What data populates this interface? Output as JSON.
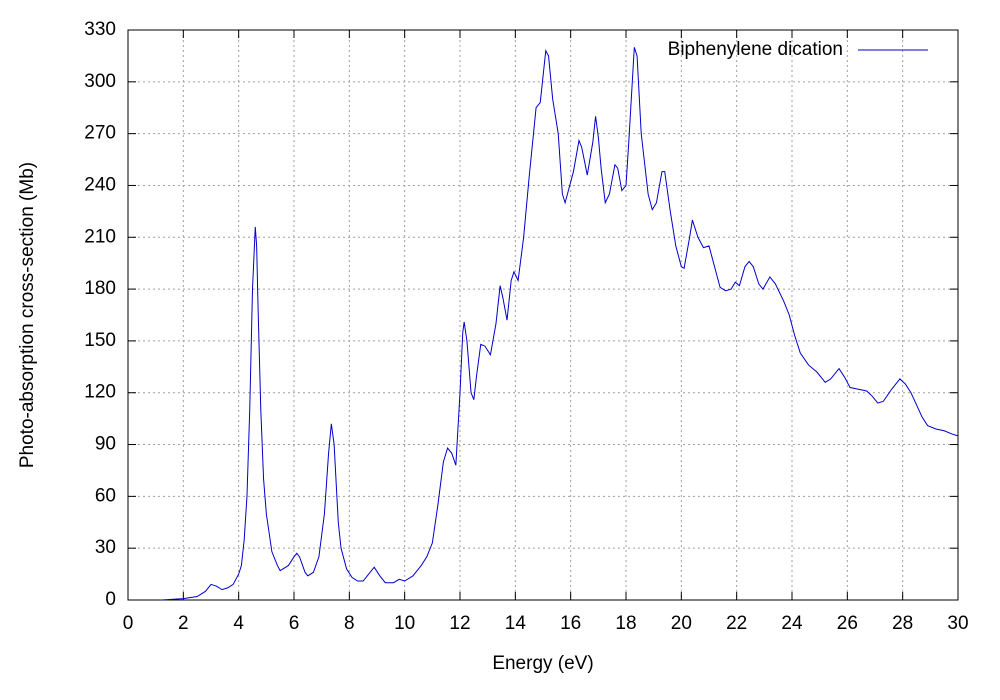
{
  "chart_data": {
    "type": "line",
    "xlabel": "Energy (eV)",
    "ylabel": "Photo-absorption cross-section (Mb)",
    "x": [
      1.2,
      1.5,
      2,
      2.5,
      2.8,
      3.0,
      3.2,
      3.4,
      3.6,
      3.8,
      4.0,
      4.1,
      4.2,
      4.3,
      4.4,
      4.5,
      4.6,
      4.65,
      4.7,
      4.8,
      4.9,
      5.0,
      5.2,
      5.4,
      5.5,
      5.6,
      5.8,
      6.0,
      6.1,
      6.2,
      6.4,
      6.5,
      6.7,
      6.9,
      7.1,
      7.25,
      7.35,
      7.45,
      7.6,
      7.7,
      7.9,
      8.1,
      8.3,
      8.5,
      8.7,
      8.9,
      9.1,
      9.3,
      9.6,
      9.8,
      10.0,
      10.3,
      10.6,
      10.8,
      11.0,
      11.2,
      11.4,
      11.55,
      11.7,
      11.85,
      12.0,
      12.1,
      12.15,
      12.25,
      12.4,
      12.5,
      12.6,
      12.75,
      12.9,
      13.1,
      13.3,
      13.45,
      13.55,
      13.7,
      13.85,
      13.95,
      14.1,
      14.3,
      14.5,
      14.75,
      14.9,
      15.1,
      15.2,
      15.35,
      15.55,
      15.7,
      15.8,
      16.0,
      16.1,
      16.3,
      16.4,
      16.6,
      16.8,
      16.9,
      17.0,
      17.1,
      17.25,
      17.4,
      17.6,
      17.7,
      17.85,
      18.0,
      18.1,
      18.3,
      18.4,
      18.55,
      18.8,
      18.95,
      19.1,
      19.3,
      19.4,
      19.6,
      19.8,
      20.0,
      20.1,
      20.3,
      20.4,
      20.6,
      20.8,
      21.0,
      21.2,
      21.4,
      21.6,
      21.8,
      21.95,
      22.1,
      22.3,
      22.45,
      22.6,
      22.8,
      22.95,
      23.2,
      23.4,
      23.7,
      23.9,
      24.1,
      24.3,
      24.6,
      24.9,
      25.2,
      25.4,
      25.7,
      25.9,
      26.1,
      26.4,
      26.7,
      26.9,
      27.1,
      27.3,
      27.6,
      27.9,
      28.1,
      28.3,
      28.5,
      28.7,
      28.9,
      29.2,
      29.5,
      29.8,
      30
    ],
    "series": [
      {
        "name": "Biphenylene dication",
        "color": "#0000cc",
        "values": [
          0,
          0.3,
          0.8,
          2,
          5,
          9,
          8,
          6,
          7,
          9,
          15,
          20,
          35,
          60,
          110,
          180,
          216,
          205,
          170,
          110,
          70,
          50,
          28,
          20,
          17,
          18,
          20,
          25,
          27,
          25,
          16,
          14,
          16,
          25,
          50,
          85,
          102,
          90,
          45,
          30,
          18,
          13,
          11,
          11,
          15,
          19,
          14,
          10,
          10,
          12,
          11,
          14,
          20,
          25,
          33,
          55,
          80,
          88,
          85,
          78,
          120,
          155,
          161,
          150,
          120,
          116,
          130,
          148,
          147,
          142,
          160,
          182,
          175,
          162,
          185,
          190,
          185,
          210,
          245,
          285,
          288,
          318,
          315,
          290,
          270,
          235,
          230,
          242,
          248,
          266,
          262,
          246,
          265,
          280,
          268,
          250,
          230,
          235,
          252,
          250,
          237,
          240,
          265,
          320,
          315,
          270,
          235,
          226,
          230,
          248,
          248,
          225,
          205,
          193,
          192,
          210,
          220,
          210,
          204,
          205,
          193,
          181,
          179,
          180,
          184,
          182,
          193,
          196,
          193,
          183,
          180,
          187,
          183,
          173,
          165,
          153,
          143,
          136,
          132,
          126,
          128,
          134,
          129,
          123,
          122,
          121,
          118,
          114,
          115,
          122,
          128,
          125,
          120,
          113,
          106,
          101,
          99,
          98,
          96,
          95
        ]
      }
    ],
    "xlim": [
      0,
      30
    ],
    "ylim": [
      0,
      330
    ],
    "xticks": [
      0,
      2,
      4,
      6,
      8,
      10,
      12,
      14,
      16,
      18,
      20,
      22,
      24,
      26,
      28,
      30
    ],
    "yticks": [
      0,
      30,
      60,
      90,
      120,
      150,
      180,
      210,
      240,
      270,
      300,
      330
    ],
    "grid": true,
    "legend": "top-right"
  }
}
